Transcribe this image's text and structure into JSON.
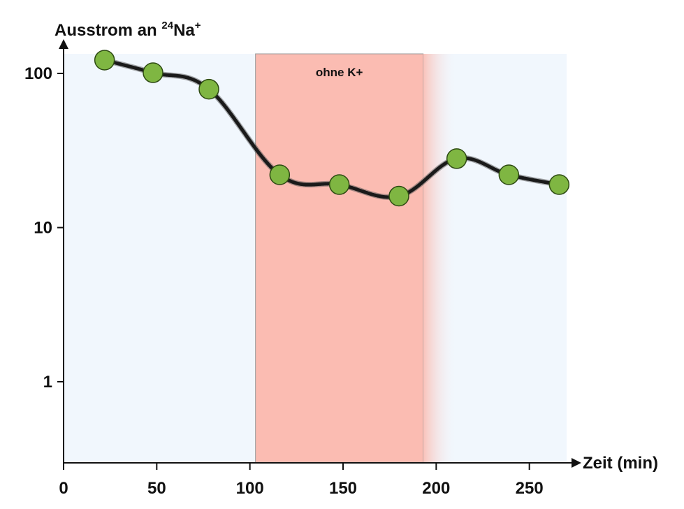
{
  "chart_data": {
    "type": "line",
    "ylabel": {
      "prefix": "Ausstrom an ",
      "isotope": "24",
      "element": "Na",
      "charge": "+"
    },
    "xlabel": "Zeit (min)",
    "x_ticks": [
      "0",
      "50",
      "100",
      "150",
      "200",
      "250"
    ],
    "y_ticks": [
      "100",
      "10",
      "1"
    ],
    "x_tick_values": [
      0,
      50,
      100,
      150,
      200,
      250
    ],
    "y_tick_values": [
      100,
      10,
      1
    ],
    "xlim": [
      0,
      270
    ],
    "ylim": [
      0.3,
      130
    ],
    "y_scale": "log",
    "grid": false,
    "annotation": {
      "label": "ohne K+",
      "x_start": 103,
      "x_end": 193
    },
    "series": [
      {
        "x": [
          22,
          48,
          78,
          116,
          148,
          180,
          211,
          239,
          266
        ],
        "y": [
          122,
          101,
          79,
          22,
          19,
          16,
          28,
          22,
          19
        ]
      }
    ],
    "colors": {
      "background": "#f1f7fd",
      "highlight": "#fbbcb2",
      "highlight_border": "#999999",
      "marker_fill": "#7fb642",
      "marker_stroke": "#2d4a12",
      "line": "#1a1a1a",
      "axis": "#111111"
    }
  }
}
